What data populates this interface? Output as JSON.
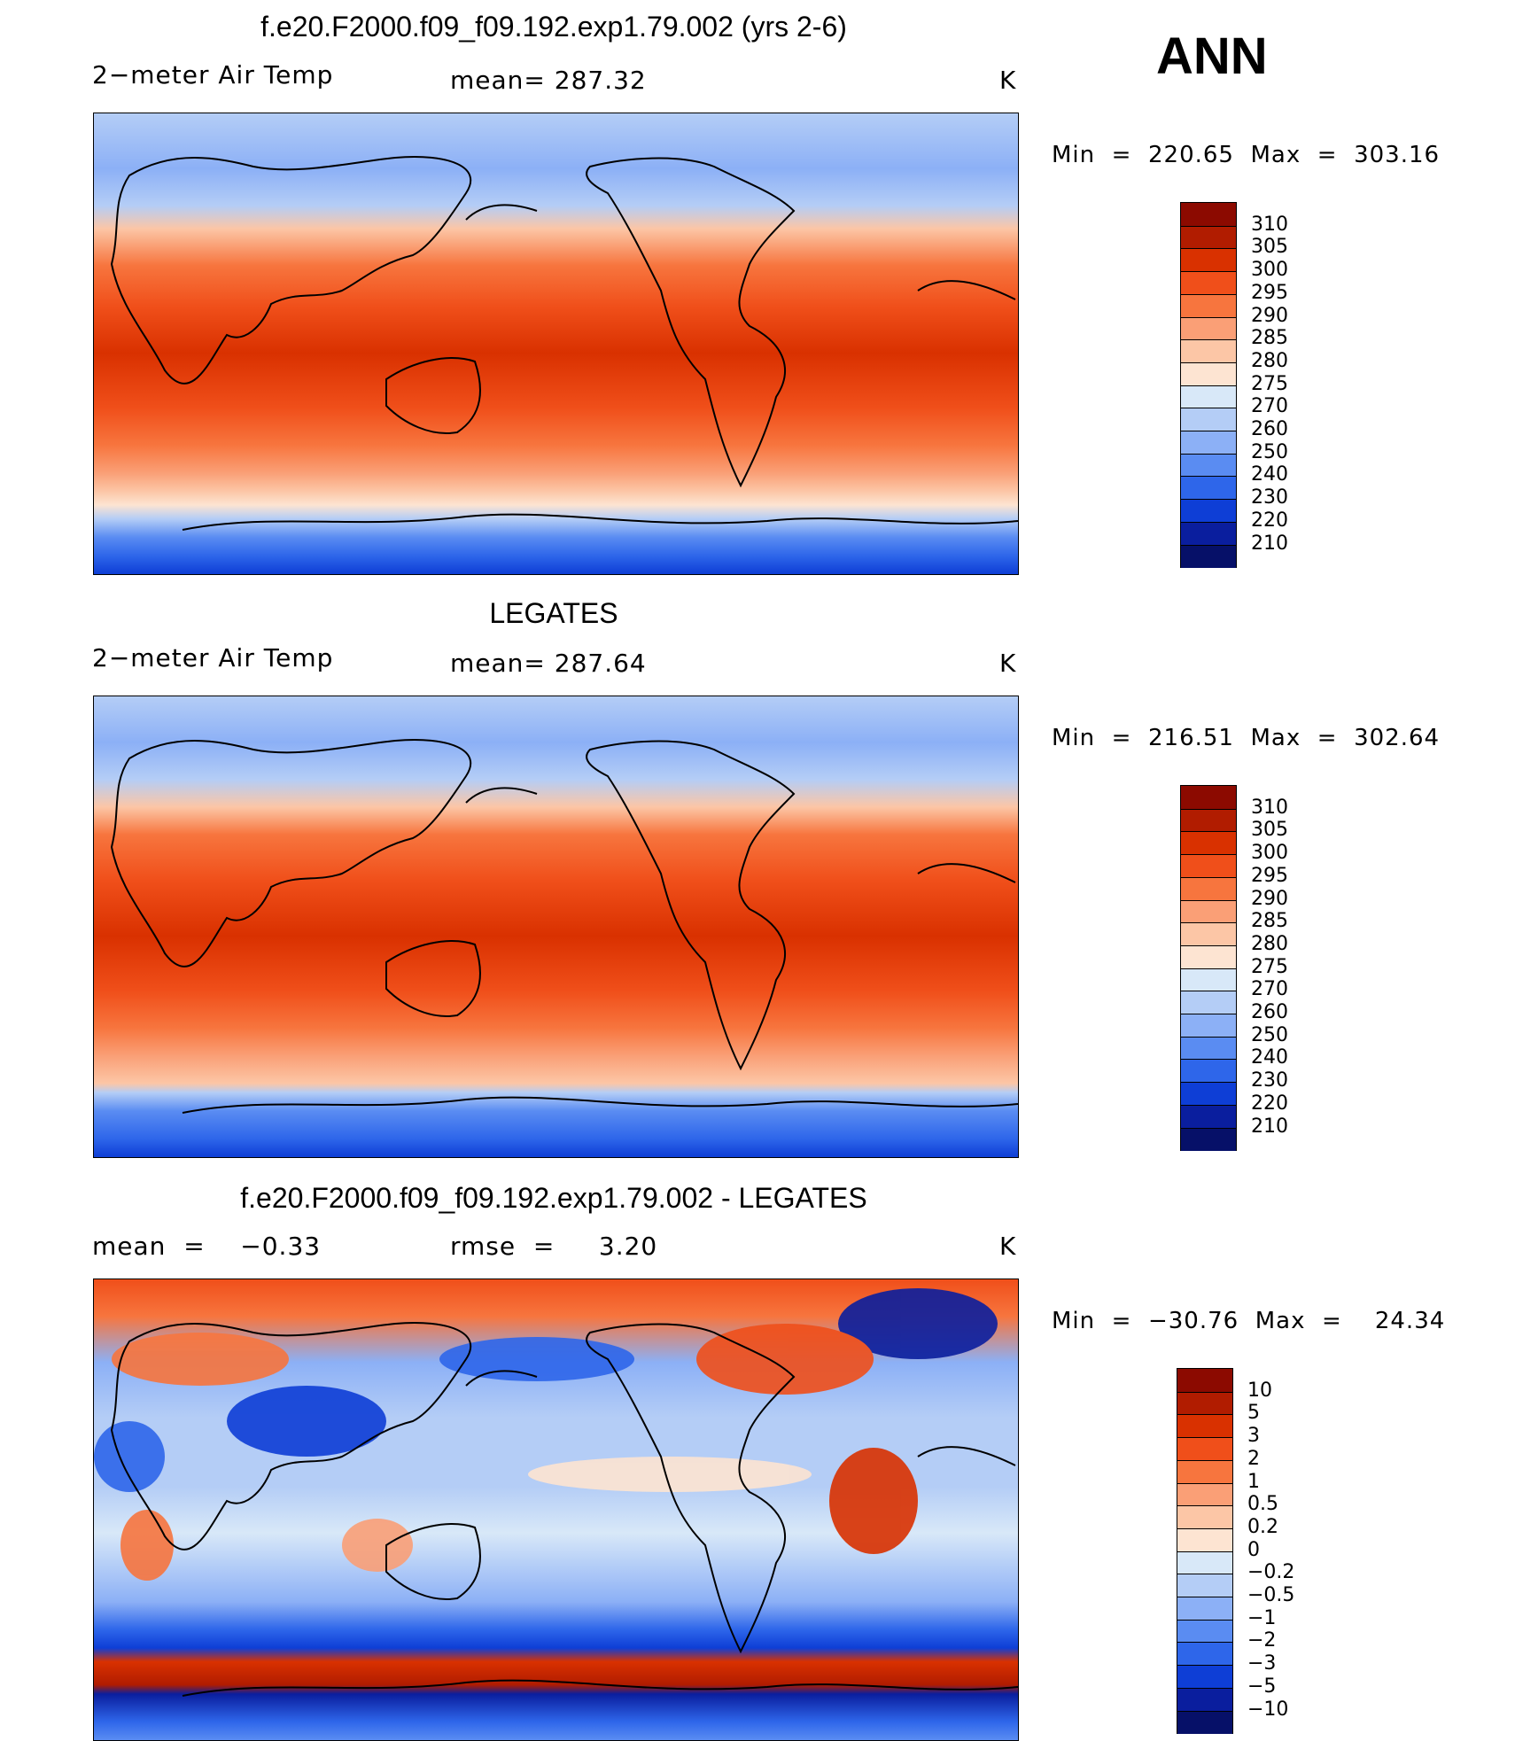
{
  "season_label": "ANN",
  "panels": [
    {
      "title": "f.e20.F2000.f09_f09.192.exp1.79.002 (yrs 2-6)",
      "left_label": "2−meter Air Temp",
      "center_label": "mean= 287.32",
      "unit": "K",
      "minmax": "Min  =  220.65  Max  =  303.16",
      "colorbar_levels": [
        "310",
        "305",
        "300",
        "295",
        "290",
        "285",
        "280",
        "275",
        "270",
        "260",
        "250",
        "240",
        "230",
        "220",
        "210"
      ],
      "colorbar_colors": [
        "#8c0a00",
        "#b11c00",
        "#d93100",
        "#f04f1a",
        "#f7753e",
        "#fa9f76",
        "#fcc6a6",
        "#fde4d2",
        "#d8e8f8",
        "#b4cdf6",
        "#8cb0f6",
        "#5a8cf2",
        "#2e66ea",
        "#0e3ed6",
        "#0a1e9e",
        "#061068"
      ]
    },
    {
      "title": "LEGATES",
      "left_label": "2−meter Air Temp",
      "center_label": "mean= 287.64",
      "unit": "K",
      "minmax": "Min  =  216.51  Max  =  302.64",
      "colorbar_levels": [
        "310",
        "305",
        "300",
        "295",
        "290",
        "285",
        "280",
        "275",
        "270",
        "260",
        "250",
        "240",
        "230",
        "220",
        "210"
      ],
      "colorbar_colors": [
        "#8c0a00",
        "#b11c00",
        "#d93100",
        "#f04f1a",
        "#f7753e",
        "#fa9f76",
        "#fcc6a6",
        "#fde4d2",
        "#d8e8f8",
        "#b4cdf6",
        "#8cb0f6",
        "#5a8cf2",
        "#2e66ea",
        "#0e3ed6",
        "#0a1e9e",
        "#061068"
      ]
    },
    {
      "title": "f.e20.F2000.f09_f09.192.exp1.79.002 - LEGATES",
      "left_label": "mean  =    −0.33",
      "center_label": "rmse  =     3.20",
      "unit": "K",
      "minmax": "Min  =  −30.76  Max  =    24.34",
      "colorbar_levels": [
        "10",
        "5",
        "3",
        "2",
        "1",
        "0.5",
        "0.2",
        "0",
        "−0.2",
        "−0.5",
        "−1",
        "−2",
        "−3",
        "−5",
        "−10"
      ],
      "colorbar_colors": [
        "#8c0a00",
        "#b11c00",
        "#d93100",
        "#f04f1a",
        "#f7753e",
        "#fa9f76",
        "#fcc6a6",
        "#fde4d2",
        "#d8e8f8",
        "#b4cdf6",
        "#8cb0f6",
        "#5a8cf2",
        "#2e66ea",
        "#0e3ed6",
        "#0a1e9e",
        "#061068"
      ]
    }
  ]
}
